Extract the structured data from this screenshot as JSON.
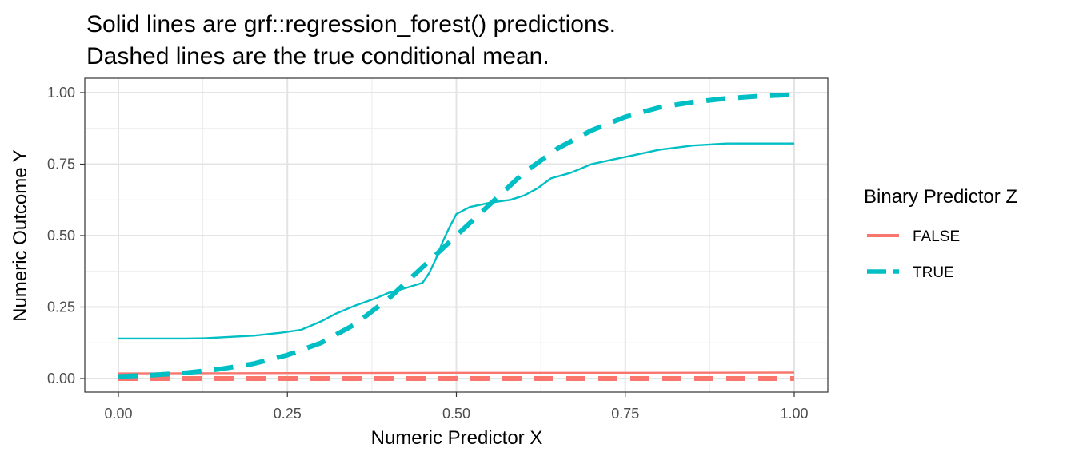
{
  "chart_data": {
    "type": "line",
    "title": "Solid lines are grf::regression_forest() predictions.",
    "subtitle": "Dashed lines are the true conditional mean.",
    "xlabel": "Numeric Predictor X",
    "ylabel": "Numeric Outcome Y",
    "xlim": [
      0,
      1
    ],
    "ylim": [
      0,
      1
    ],
    "x_ticks": [
      "0.00",
      "0.25",
      "0.50",
      "0.75",
      "1.00"
    ],
    "y_ticks": [
      "0.00",
      "0.25",
      "0.50",
      "0.75",
      "1.00"
    ],
    "grid": true,
    "legend": {
      "title": "Binary Predictor Z",
      "position": "right",
      "entries": [
        "FALSE",
        "TRUE"
      ]
    },
    "colors": {
      "FALSE": "#F8766D",
      "TRUE": "#00BFC4"
    },
    "series": [
      {
        "name": "TRUE",
        "kind": "predictions",
        "style": "solid",
        "points": [
          [
            0.0,
            0.14
          ],
          [
            0.05,
            0.14
          ],
          [
            0.1,
            0.14
          ],
          [
            0.13,
            0.141
          ],
          [
            0.16,
            0.145
          ],
          [
            0.2,
            0.15
          ],
          [
            0.24,
            0.16
          ],
          [
            0.27,
            0.17
          ],
          [
            0.3,
            0.2
          ],
          [
            0.32,
            0.225
          ],
          [
            0.35,
            0.255
          ],
          [
            0.38,
            0.28
          ],
          [
            0.4,
            0.3
          ],
          [
            0.43,
            0.32
          ],
          [
            0.45,
            0.335
          ],
          [
            0.46,
            0.37
          ],
          [
            0.47,
            0.42
          ],
          [
            0.48,
            0.48
          ],
          [
            0.49,
            0.53
          ],
          [
            0.5,
            0.575
          ],
          [
            0.52,
            0.6
          ],
          [
            0.55,
            0.615
          ],
          [
            0.58,
            0.625
          ],
          [
            0.6,
            0.64
          ],
          [
            0.62,
            0.665
          ],
          [
            0.64,
            0.7
          ],
          [
            0.67,
            0.72
          ],
          [
            0.7,
            0.75
          ],
          [
            0.73,
            0.765
          ],
          [
            0.76,
            0.78
          ],
          [
            0.8,
            0.8
          ],
          [
            0.85,
            0.815
          ],
          [
            0.9,
            0.822
          ],
          [
            0.95,
            0.822
          ],
          [
            1.0,
            0.822
          ]
        ]
      },
      {
        "name": "TRUE",
        "kind": "true_mean",
        "style": "dashed",
        "points": [
          [
            0.0,
            0.007
          ],
          [
            0.05,
            0.012
          ],
          [
            0.1,
            0.02
          ],
          [
            0.15,
            0.033
          ],
          [
            0.2,
            0.052
          ],
          [
            0.25,
            0.082
          ],
          [
            0.3,
            0.125
          ],
          [
            0.35,
            0.19
          ],
          [
            0.4,
            0.28
          ],
          [
            0.45,
            0.39
          ],
          [
            0.5,
            0.5
          ],
          [
            0.55,
            0.61
          ],
          [
            0.6,
            0.72
          ],
          [
            0.65,
            0.805
          ],
          [
            0.7,
            0.868
          ],
          [
            0.75,
            0.915
          ],
          [
            0.8,
            0.948
          ],
          [
            0.85,
            0.967
          ],
          [
            0.9,
            0.98
          ],
          [
            0.95,
            0.988
          ],
          [
            1.0,
            0.993
          ]
        ]
      },
      {
        "name": "FALSE",
        "kind": "predictions",
        "style": "solid",
        "points": [
          [
            0.0,
            0.018
          ],
          [
            0.25,
            0.019
          ],
          [
            0.5,
            0.02
          ],
          [
            0.75,
            0.02
          ],
          [
            1.0,
            0.021
          ]
        ]
      },
      {
        "name": "FALSE",
        "kind": "true_mean",
        "style": "dashed",
        "points": [
          [
            0.0,
            0.0
          ],
          [
            0.5,
            0.0
          ],
          [
            1.0,
            0.0
          ]
        ]
      }
    ]
  }
}
